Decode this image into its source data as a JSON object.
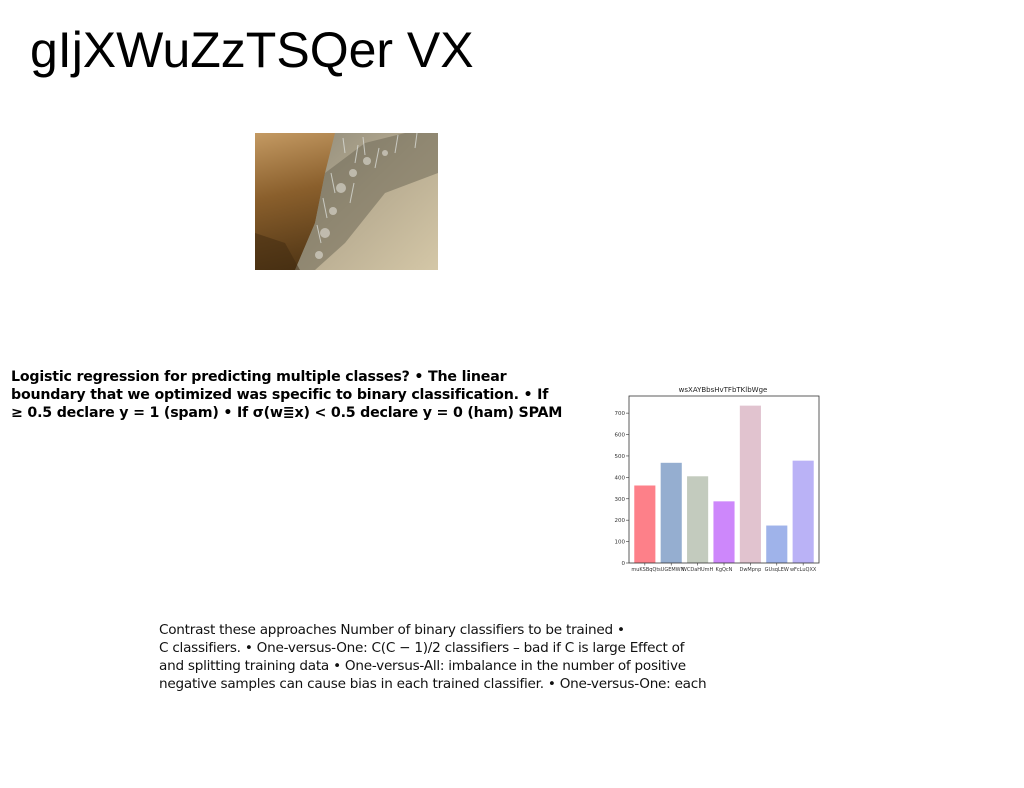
{
  "slide": {
    "title": "gIjXWuZzTSQer VX"
  },
  "bold_paragraph": {
    "lines": [
      "Logistic regression for predicting multiple classes? • The linear",
      "boundary that we optimized was specific to binary classification. • If",
      "≥ 0.5 declare y = 1 (spam) • If σ(w≣x) < 0.5 declare y = 0 (ham) SPAM"
    ]
  },
  "body_paragraph": {
    "lines": [
      "Contrast these approaches Number of binary classifiers to be trained •",
      "C classifiers. • One-versus-One: C(C − 1)/2 classifiers – bad if C is large Effect of",
      "and splitting training data • One-versus-All: imbalance in the number of positive",
      "negative samples can cause bias in each trained classifier. • One-versus-One: each"
    ]
  },
  "chart_data": {
    "type": "bar",
    "title": "wsXAYBbsHvTFbTKlbWge",
    "xlabel": "",
    "ylabel": "",
    "categories": [
      "muKSBqQt",
      "sUGEMWN",
      "WCDaHUmH",
      "KgQcN",
      "DwMpnp",
      "GUsqLEW",
      "wFcLuQXX"
    ],
    "values": [
      362,
      468,
      405,
      288,
      735,
      175,
      478
    ],
    "colors": [
      "#fd8089",
      "#95aed0",
      "#c3cbbe",
      "#cd87fb",
      "#e1c3cf",
      "#9fb3ea",
      "#bab2f6"
    ],
    "ylim": [
      0,
      780
    ],
    "yticks": [
      0,
      100,
      200,
      300,
      400,
      500,
      600,
      700
    ],
    "grid": false
  }
}
